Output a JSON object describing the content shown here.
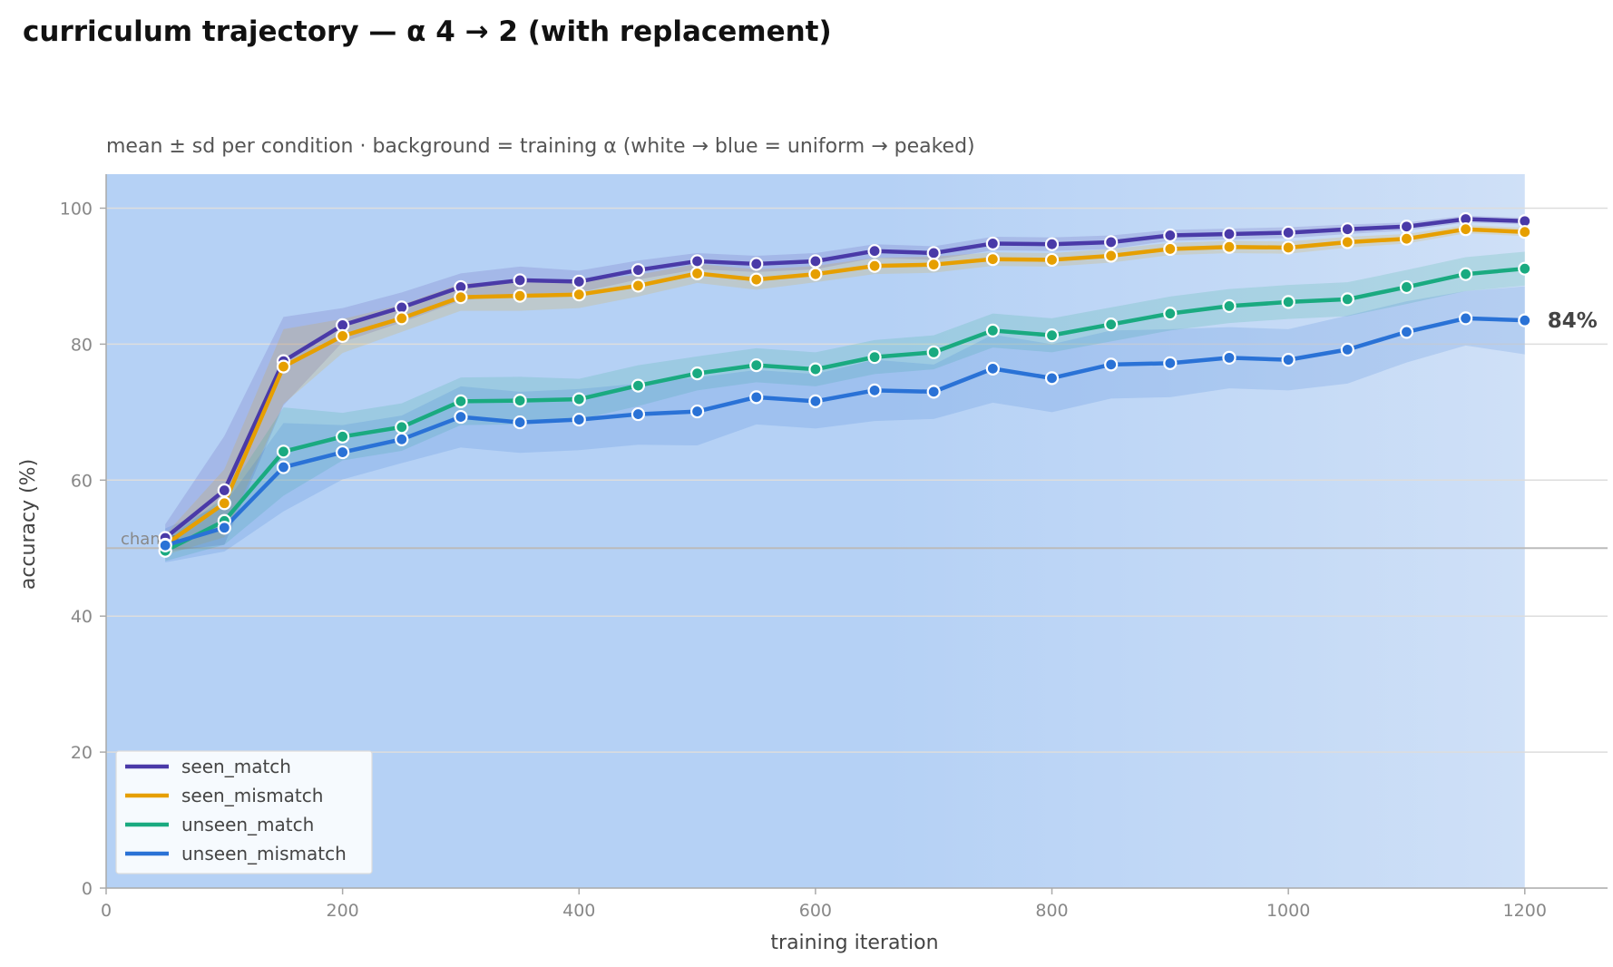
{
  "chart_data": {
    "type": "line",
    "title": "curriculum trajectory — α 4 → 2 (with replacement)",
    "subtitle": "mean ± sd per condition · background = training α (white → blue = uniform → peaked)",
    "xlabel": "training iteration",
    "ylabel": "accuracy (%)",
    "xlim": [
      0,
      1270
    ],
    "ylim": [
      0,
      105
    ],
    "xticks": [
      0,
      200,
      400,
      600,
      800,
      1000,
      1200
    ],
    "yticks": [
      0,
      20,
      40,
      60,
      80,
      100
    ],
    "grid": "horizontal",
    "legend_position": "lower-left",
    "chance_level": 50,
    "chance_label": "chance",
    "background_alpha": {
      "start_color": "#b5d1f5",
      "end_color": "#cfe0f7",
      "x_end": 1200
    },
    "x": [
      50,
      100,
      150,
      200,
      250,
      300,
      350,
      400,
      450,
      500,
      550,
      600,
      650,
      700,
      750,
      800,
      850,
      900,
      950,
      1000,
      1050,
      1100,
      1150,
      1200
    ],
    "series": [
      {
        "name": "seen_match",
        "color": "#4a3aa8",
        "values": [
          51.5,
          58.5,
          77.5,
          82.8,
          85.4,
          88.4,
          89.4,
          89.2,
          90.9,
          92.2,
          91.8,
          92.2,
          93.7,
          93.4,
          94.8,
          94.7,
          95.0,
          96.0,
          96.2,
          96.4,
          96.9,
          97.3,
          98.4,
          98.1
        ],
        "sd": [
          2.0,
          8.0,
          6.5,
          2.5,
          2.2,
          2.0,
          2.0,
          1.6,
          1.4,
          1.2,
          1.2,
          1.2,
          1.0,
          1.0,
          1.0,
          1.0,
          1.0,
          0.8,
          0.8,
          0.8,
          0.7,
          0.6,
          0.5,
          0.5
        ]
      },
      {
        "name": "seen_mismatch",
        "color": "#e69f00",
        "values": [
          50.5,
          56.6,
          76.7,
          81.2,
          83.8,
          86.9,
          87.1,
          87.3,
          88.6,
          90.4,
          89.5,
          90.3,
          91.5,
          91.7,
          92.5,
          92.4,
          93.0,
          94.0,
          94.3,
          94.2,
          95.0,
          95.5,
          96.9,
          96.5
        ],
        "sd": [
          1.5,
          5.0,
          5.5,
          2.5,
          2.0,
          2.0,
          2.2,
          2.0,
          1.6,
          1.4,
          1.5,
          1.2,
          1.2,
          1.2,
          1.0,
          1.0,
          1.0,
          0.9,
          0.9,
          0.9,
          0.8,
          0.7,
          0.6,
          0.6
        ]
      },
      {
        "name": "unseen_match",
        "color": "#1aaa80",
        "values": [
          49.6,
          54.0,
          64.2,
          66.4,
          67.8,
          71.6,
          71.7,
          71.9,
          73.9,
          75.7,
          76.9,
          76.3,
          78.1,
          78.8,
          82.0,
          81.3,
          82.9,
          84.5,
          85.6,
          86.2,
          86.6,
          88.4,
          90.3,
          91.1
        ],
        "sd": [
          1.5,
          3.5,
          6.5,
          3.5,
          3.5,
          3.5,
          3.5,
          3.0,
          3.0,
          2.5,
          2.5,
          2.5,
          2.5,
          2.5,
          2.5,
          2.5,
          2.5,
          2.5,
          2.5,
          2.5,
          2.5,
          2.5,
          2.5,
          2.5
        ]
      },
      {
        "name": "unseen_mismatch",
        "color": "#2a72d6",
        "values": [
          50.4,
          53.0,
          61.9,
          64.1,
          66.0,
          69.3,
          68.5,
          68.9,
          69.7,
          70.1,
          72.2,
          71.6,
          73.2,
          73.0,
          76.4,
          75.0,
          77.0,
          77.2,
          78.0,
          77.7,
          79.2,
          81.8,
          83.8,
          83.5
        ],
        "sd": [
          2.5,
          3.5,
          6.5,
          4.0,
          3.5,
          4.5,
          4.5,
          4.5,
          4.5,
          5.0,
          4.0,
          4.0,
          4.5,
          4.0,
          5.0,
          5.0,
          5.0,
          5.0,
          4.5,
          4.5,
          5.0,
          4.5,
          4.0,
          5.0
        ]
      }
    ],
    "end_annotation": {
      "series": "unseen_mismatch",
      "text": "84%"
    }
  }
}
